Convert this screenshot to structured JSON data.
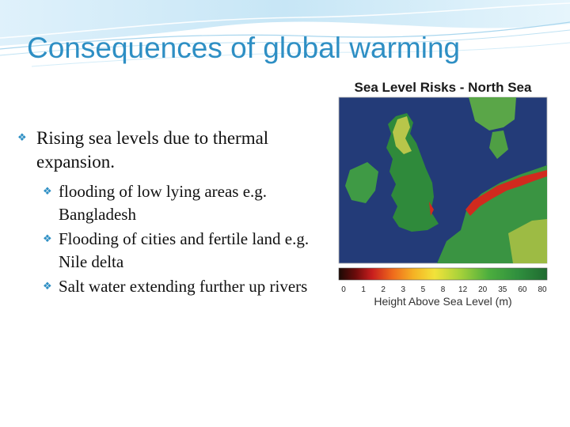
{
  "slide": {
    "title": "Consequences of global warming",
    "bullets": [
      {
        "level": 1,
        "text": "Rising sea levels due to thermal expansion."
      },
      {
        "level": 2,
        "text": "flooding of low lying areas e.g. Bangladesh"
      },
      {
        "level": 2,
        "text": "Flooding of cities and fertile land e.g. Nile delta"
      },
      {
        "level": 2,
        "text": "Salt water extending further up rivers"
      }
    ],
    "bullet_icon": "feather-bullet-icon",
    "accent_color": "#2e8fc4"
  },
  "map": {
    "title": "Sea Level Risks - North Sea",
    "scale_ticks": [
      "0",
      "1",
      "2",
      "3",
      "5",
      "8",
      "12",
      "20",
      "35",
      "60",
      "80"
    ],
    "scale_label": "Height Above Sea Level (m)",
    "colors": {
      "sea": "#233b78",
      "lowland": "#2f8a3b",
      "highland": "#b8c64a",
      "at_risk": "#d12a1e"
    }
  }
}
